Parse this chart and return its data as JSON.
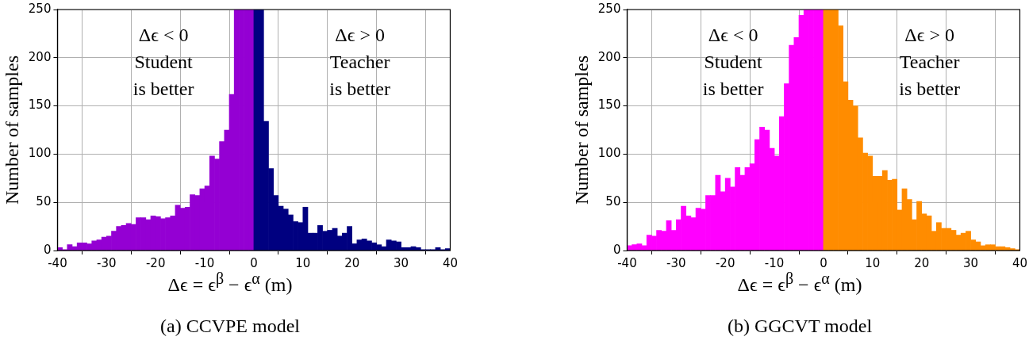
{
  "chart_data": [
    {
      "type": "histogram",
      "xlabel": "Δϵ = ϵ$^{β}$ − ϵ$^{α}$ (m)",
      "ylabel": "Number of samples",
      "bins": [
        -40,
        -39,
        -38,
        -37,
        -36,
        -35,
        -34,
        -33,
        -32,
        -31,
        -30,
        -29,
        -28,
        -27,
        -26,
        -25,
        -24,
        -23,
        -22,
        -21,
        -20,
        -19,
        -18,
        -17,
        -16,
        -15,
        -14,
        -13,
        -12,
        -11,
        -10,
        -9,
        -8,
        -7,
        -6,
        -5,
        -4,
        -3,
        -2,
        -1,
        0,
        1,
        2,
        3,
        4,
        5,
        6,
        7,
        8,
        9,
        10,
        11,
        12,
        13,
        14,
        15,
        16,
        17,
        18,
        19,
        20,
        21,
        22,
        23,
        24,
        25,
        26,
        27,
        28,
        29,
        30,
        31,
        32,
        33,
        34,
        35,
        36,
        37,
        38,
        39,
        40
      ],
      "values": [
        3,
        1,
        6,
        4,
        8,
        8,
        7,
        10,
        11,
        14,
        15,
        20,
        25,
        26,
        28,
        27,
        34,
        34,
        32,
        36,
        35,
        33,
        34,
        36,
        47,
        44,
        45,
        58,
        57,
        64,
        67,
        98,
        95,
        113,
        125,
        162,
        250,
        250,
        250,
        250,
        250,
        250,
        134,
        85,
        57,
        46,
        43,
        37,
        30,
        29,
        45,
        18,
        18,
        26,
        20,
        21,
        23,
        15,
        18,
        25,
        7,
        11,
        12,
        10,
        8,
        6,
        4,
        11,
        10,
        9,
        3,
        3,
        4,
        3,
        1,
        1,
        1,
        3,
        1,
        2
      ],
      "colors": [
        "#9400d3",
        "#9400d3",
        "#9400d3",
        "#9400d3",
        "#9400d3",
        "#9400d3",
        "#9400d3",
        "#9400d3",
        "#9400d3",
        "#9400d3",
        "#9400d3",
        "#9400d3",
        "#9400d3",
        "#9400d3",
        "#9400d3",
        "#9400d3",
        "#9400d3",
        "#9400d3",
        "#9400d3",
        "#9400d3",
        "#9400d3",
        "#9400d3",
        "#9400d3",
        "#9400d3",
        "#9400d3",
        "#9400d3",
        "#9400d3",
        "#9400d3",
        "#9400d3",
        "#9400d3",
        "#9400d3",
        "#9400d3",
        "#9400d3",
        "#9400d3",
        "#9400d3",
        "#9400d3",
        "#9400d3",
        "#9400d3",
        "#9400d3",
        "#9400d3",
        "#000080",
        "#000080",
        "#000080",
        "#000080",
        "#000080",
        "#000080",
        "#000080",
        "#000080",
        "#000080",
        "#000080",
        "#000080",
        "#000080",
        "#000080",
        "#000080",
        "#000080",
        "#000080",
        "#000080",
        "#000080",
        "#000080",
        "#000080",
        "#000080",
        "#000080",
        "#000080",
        "#000080",
        "#000080",
        "#000080",
        "#000080",
        "#000080",
        "#000080",
        "#000080",
        "#000080",
        "#000080",
        "#000080",
        "#000080",
        "#000080",
        "#000080",
        "#000080",
        "#000080",
        "#000080",
        "#000080"
      ],
      "xlim": [
        -40,
        40
      ],
      "xticks": [
        -40,
        -30,
        -20,
        -10,
        0,
        10,
        20,
        30,
        40
      ],
      "ylim": [
        0,
        250
      ],
      "yticks": [
        0,
        50,
        100,
        150,
        200,
        250
      ],
      "grid": true,
      "annotations": [
        "Δϵ < 0\nStudent\nis better",
        "Δϵ > 0\nTeacher\nis better",
        "(a) CCVPE model"
      ]
    },
    {
      "type": "histogram",
      "xlabel": "Δϵ = ϵ$^{β}$ − ϵ$^{α}$ (m)",
      "ylabel": "Number of samples",
      "bins": [
        -40,
        -39,
        -38,
        -37,
        -36,
        -35,
        -34,
        -33,
        -32,
        -31,
        -30,
        -29,
        -28,
        -27,
        -26,
        -25,
        -24,
        -23,
        -22,
        -21,
        -20,
        -19,
        -18,
        -17,
        -16,
        -15,
        -14,
        -13,
        -12,
        -11,
        -10,
        -9,
        -8,
        -7,
        -6,
        -5,
        -4,
        -3,
        -2,
        -1,
        0,
        1,
        2,
        3,
        4,
        5,
        6,
        7,
        8,
        9,
        10,
        11,
        12,
        13,
        14,
        15,
        16,
        17,
        18,
        19,
        20,
        21,
        22,
        23,
        24,
        25,
        26,
        27,
        28,
        29,
        30,
        31,
        32,
        33,
        34,
        35,
        36,
        37,
        38,
        39,
        40
      ],
      "values": [
        5,
        6,
        7,
        5,
        16,
        15,
        21,
        20,
        31,
        21,
        32,
        46,
        36,
        34,
        44,
        43,
        57,
        57,
        78,
        61,
        75,
        66,
        86,
        78,
        86,
        90,
        115,
        128,
        125,
        106,
        98,
        139,
        173,
        213,
        221,
        244,
        250,
        250,
        250,
        250,
        250,
        250,
        250,
        233,
        175,
        156,
        150,
        117,
        101,
        98,
        77,
        77,
        83,
        73,
        74,
        42,
        64,
        53,
        32,
        51,
        38,
        36,
        20,
        29,
        23,
        23,
        21,
        16,
        18,
        20,
        11,
        9,
        5,
        6,
        6,
        4,
        4,
        3,
        2,
        1
      ],
      "colors": [
        "#ff00ff",
        "#ff00ff",
        "#ff00ff",
        "#ff00ff",
        "#ff00ff",
        "#ff00ff",
        "#ff00ff",
        "#ff00ff",
        "#ff00ff",
        "#ff00ff",
        "#ff00ff",
        "#ff00ff",
        "#ff00ff",
        "#ff00ff",
        "#ff00ff",
        "#ff00ff",
        "#ff00ff",
        "#ff00ff",
        "#ff00ff",
        "#ff00ff",
        "#ff00ff",
        "#ff00ff",
        "#ff00ff",
        "#ff00ff",
        "#ff00ff",
        "#ff00ff",
        "#ff00ff",
        "#ff00ff",
        "#ff00ff",
        "#ff00ff",
        "#ff00ff",
        "#ff00ff",
        "#ff00ff",
        "#ff00ff",
        "#ff00ff",
        "#ff00ff",
        "#ff00ff",
        "#ff00ff",
        "#ff00ff",
        "#ff00ff",
        "#ff8c00",
        "#ff8c00",
        "#ff8c00",
        "#ff8c00",
        "#ff8c00",
        "#ff8c00",
        "#ff8c00",
        "#ff8c00",
        "#ff8c00",
        "#ff8c00",
        "#ff8c00",
        "#ff8c00",
        "#ff8c00",
        "#ff8c00",
        "#ff8c00",
        "#ff8c00",
        "#ff8c00",
        "#ff8c00",
        "#ff8c00",
        "#ff8c00",
        "#ff8c00",
        "#ff8c00",
        "#ff8c00",
        "#ff8c00",
        "#ff8c00",
        "#ff8c00",
        "#ff8c00",
        "#ff8c00",
        "#ff8c00",
        "#ff8c00",
        "#ff8c00",
        "#ff8c00",
        "#ff8c00",
        "#ff8c00",
        "#ff8c00",
        "#ff8c00",
        "#ff8c00",
        "#ff8c00",
        "#ff8c00",
        "#ff8c00"
      ],
      "xlim": [
        -40,
        40
      ],
      "xticks": [
        -40,
        -30,
        -20,
        -10,
        0,
        10,
        20,
        30,
        40
      ],
      "ylim": [
        0,
        250
      ],
      "yticks": [
        0,
        50,
        100,
        150,
        200,
        250
      ],
      "grid": true,
      "annotations": [
        "Δϵ < 0\nStudent\nis better",
        "Δϵ > 0\nTeacher\nis better",
        "(b) GGCVT model"
      ]
    }
  ]
}
